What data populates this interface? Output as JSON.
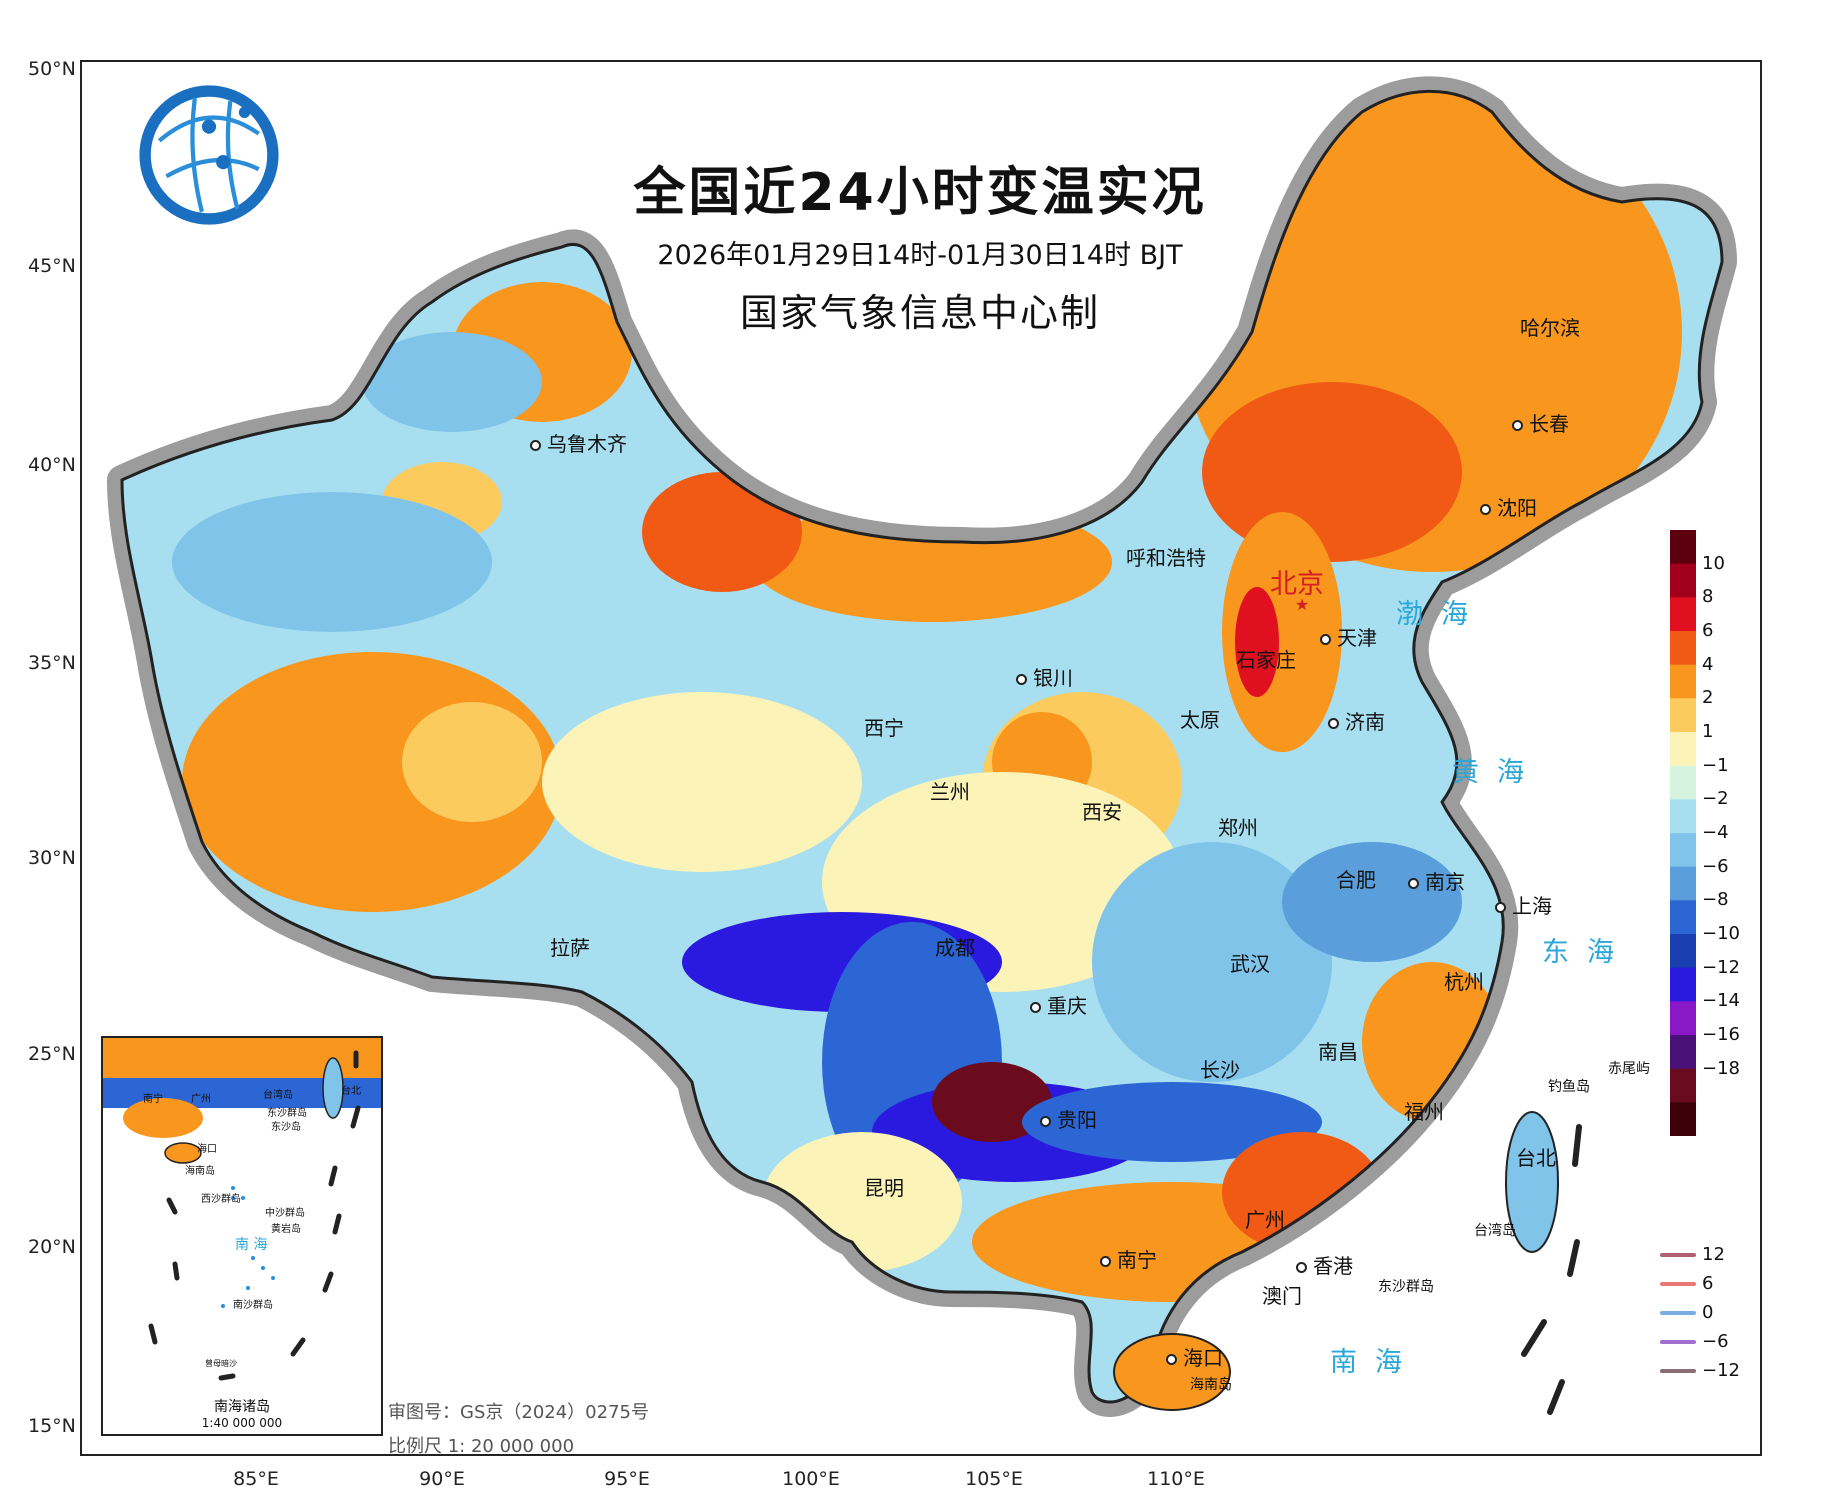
{
  "title": {
    "main": "全国近24小时变温实况",
    "period": "2026年01月29日14时-01月30日14时 BJT",
    "org": "国家气象信息中心制"
  },
  "axes": {
    "lat_labels": [
      "50°N",
      "45°N",
      "40°N",
      "35°N",
      "30°N",
      "25°N",
      "20°N",
      "15°N"
    ],
    "lon_labels": [
      "85°E",
      "90°E",
      "95°E",
      "100°E",
      "105°E",
      "110°E"
    ]
  },
  "capital": "北京",
  "cities": [
    {
      "name": "乌鲁木齐"
    },
    {
      "name": "哈尔滨"
    },
    {
      "name": "长春"
    },
    {
      "name": "沈阳"
    },
    {
      "name": "呼和浩特"
    },
    {
      "name": "天津"
    },
    {
      "name": "石家庄"
    },
    {
      "name": "银川"
    },
    {
      "name": "太原"
    },
    {
      "name": "济南"
    },
    {
      "name": "西宁"
    },
    {
      "name": "兰州"
    },
    {
      "name": "西安"
    },
    {
      "name": "郑州"
    },
    {
      "name": "合肥"
    },
    {
      "name": "南京"
    },
    {
      "name": "上海"
    },
    {
      "name": "拉萨"
    },
    {
      "name": "成都"
    },
    {
      "name": "武汉"
    },
    {
      "name": "杭州"
    },
    {
      "name": "重庆"
    },
    {
      "name": "南昌"
    },
    {
      "name": "长沙"
    },
    {
      "name": "贵阳"
    },
    {
      "name": "福州"
    },
    {
      "name": "台北"
    },
    {
      "name": "昆明"
    },
    {
      "name": "广州"
    },
    {
      "name": "南宁"
    },
    {
      "name": "香港"
    },
    {
      "name": "澳门"
    },
    {
      "name": "海口"
    }
  ],
  "seas": {
    "bohai": "渤海",
    "huanghai": "黄海",
    "donghai": "东海",
    "nanhai": "南海"
  },
  "islands": {
    "diaoyu": "钓鱼岛",
    "chiwei": "赤尾屿",
    "taiwan": "台湾岛",
    "dongsha": "东沙群岛",
    "hainan": "海南岛"
  },
  "legend": {
    "fill_ticks": [
      "10",
      "8",
      "6",
      "4",
      "2",
      "1",
      "−1",
      "−2",
      "−4",
      "−6",
      "−8",
      "−10",
      "−12",
      "−14",
      "−16",
      "−18"
    ],
    "fill_colors": [
      "#5c0010",
      "#a0001c",
      "#e01020",
      "#f05a14",
      "#f8961e",
      "#fccb5e",
      "#fbf3b8",
      "#d6f3df",
      "#a8dff0",
      "#80c4ea",
      "#5a9fdc",
      "#2c66d4",
      "#1a3fb0",
      "#2a1ae0",
      "#8a18c8",
      "#4a1278",
      "#6a0c1e",
      "#3c0208"
    ],
    "line_items": [
      {
        "label": "12",
        "color": "#b06070"
      },
      {
        "label": "6",
        "color": "#e87878"
      },
      {
        "label": "0",
        "color": "#78aee4"
      },
      {
        "label": "−6",
        "color": "#a070d0"
      },
      {
        "label": "−12",
        "color": "#8a6e74"
      }
    ]
  },
  "inset": {
    "title": "南海诸岛",
    "scale": "1:40 000 000",
    "labels": {
      "nanning": "南宁",
      "guangzhou": "广州",
      "taipei": "台北",
      "taiwan": "台湾岛",
      "dongsha": "东沙群岛",
      "dongsha_island": "东沙岛",
      "haikou": "海口",
      "hainan": "海南岛",
      "xisha": "西沙群岛",
      "zhongsha": "中沙群岛",
      "huangyan": "黄岩岛",
      "nansha": "南沙群岛",
      "zengmu": "曾母暗沙",
      "sea": "南 海"
    }
  },
  "footer": {
    "review_no": "审图号：GS京（2024）0275号",
    "scale": "比例尺 1: 20 000 000"
  }
}
